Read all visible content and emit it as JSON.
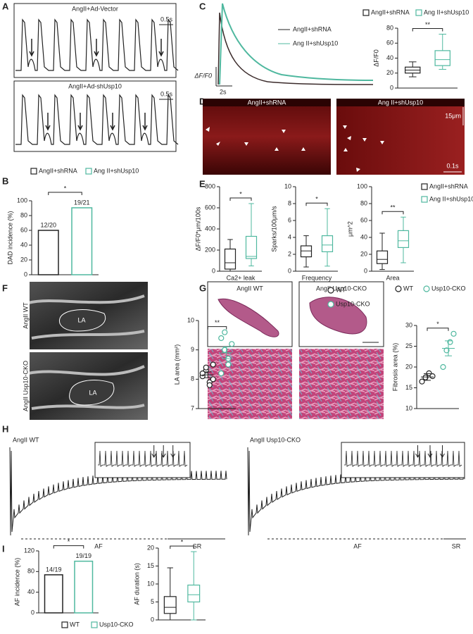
{
  "panel_labels": [
    "A",
    "B",
    "C",
    "D",
    "E",
    "F",
    "G",
    "H",
    "I"
  ],
  "panel_a": {
    "top_title": "AngII+Ad-Vector",
    "bottom_title": "AngII+Ad-shUsp10",
    "scale_top": "0.5s",
    "scale_bottom": "0.5s"
  },
  "panel_c": {
    "legend": [
      "AngII+shRNA",
      "Ang II+shUsp10"
    ],
    "y_label": "ΔF/F0",
    "scale": "2s"
  },
  "panel_d": {
    "left_title": "AngII+shRNA",
    "right_title": "Ang II+shUsp10",
    "scale_y": "15μm",
    "scale_x": "0.1s"
  },
  "panel_f": {
    "image_labels": [
      "AngII WT",
      "AngII Usp10-CKO"
    ],
    "region": "LA"
  },
  "panel_g": {
    "titles": [
      "AngII WT",
      "AngII Usp10-CKO"
    ]
  },
  "panel_h": {
    "titles": [
      "AngII WT",
      "AngII Usp10-CKO"
    ],
    "segments": [
      "AF",
      "SR"
    ]
  },
  "chart_data": [
    {
      "type": "bar",
      "y_label": "DAD incidence (%)",
      "categories": [
        "AngII+shRNA",
        "Ang II+shUsp10"
      ],
      "colors": [
        "#222222",
        "#4fb89f"
      ],
      "values": [
        60,
        90.5
      ],
      "value_labels": [
        "12/20",
        "19/21"
      ],
      "ylim": [
        0,
        100
      ],
      "yticks": [
        0,
        20,
        40,
        60,
        80,
        100
      ],
      "significance": "*"
    },
    {
      "type": "box",
      "y_label": "ΔF/F0",
      "ylim": [
        0,
        80
      ],
      "yticks": [
        0,
        20,
        40,
        60,
        80
      ],
      "significance": "**",
      "series": [
        {
          "name": "AngII+shRNA",
          "color": "#222222",
          "min": 15,
          "q1": 20,
          "median": 24,
          "q3": 28,
          "max": 35
        },
        {
          "name": "Ang II+shUsp10",
          "color": "#4fb89f",
          "min": 25,
          "q1": 30,
          "median": 38,
          "q3": 50,
          "max": 72
        }
      ]
    },
    {
      "type": "box",
      "y_label": "ΔF/F0*μm/100s",
      "x_label": "Ca2+ leak",
      "ylim": [
        0,
        800
      ],
      "yticks": [
        0,
        200,
        400,
        600,
        800
      ],
      "significance": "*",
      "series": [
        {
          "color": "#222222",
          "min": 0,
          "q1": 20,
          "median": 80,
          "q3": 210,
          "max": 300
        },
        {
          "color": "#4fb89f",
          "min": 50,
          "q1": 120,
          "median": 140,
          "q3": 330,
          "max": 640
        }
      ]
    },
    {
      "type": "box",
      "y_label": "Sparks/100μm/s",
      "x_label": "Frequency",
      "ylim": [
        0,
        10
      ],
      "yticks": [
        0,
        2,
        4,
        6,
        8,
        10
      ],
      "significance": "*",
      "series": [
        {
          "color": "#222222",
          "min": 0.5,
          "q1": 1.7,
          "median": 2.4,
          "q3": 3,
          "max": 4.2
        },
        {
          "color": "#4fb89f",
          "min": 0.6,
          "q1": 2.3,
          "median": 3.1,
          "q3": 4.2,
          "max": 7.4
        }
      ]
    },
    {
      "type": "box",
      "y_label": "μm^2",
      "x_label": "Area",
      "ylim": [
        0,
        100
      ],
      "yticks": [
        0,
        20,
        40,
        60,
        80,
        100
      ],
      "significance": "**",
      "series": [
        {
          "name": "AngII+shRNA",
          "color": "#222222",
          "min": 2,
          "q1": 9,
          "median": 14,
          "q3": 24,
          "max": 45
        },
        {
          "name": "Ang II+shUsp10",
          "color": "#4fb89f",
          "min": 10,
          "q1": 28,
          "median": 36,
          "q3": 48,
          "max": 64
        }
      ]
    },
    {
      "type": "dot",
      "y_label": "LA area (mm²)",
      "ylim": [
        7,
        10
      ],
      "yticks": [
        7,
        8,
        9,
        10
      ],
      "significance": "**",
      "series": [
        {
          "name": "WT",
          "color": "#222222",
          "values": [
            8.1,
            8.3,
            7.9,
            8.0,
            8.2,
            8.4,
            7.8,
            8.5
          ],
          "mean": 8.15,
          "sem": 0.1
        },
        {
          "name": "Usp10-CKO",
          "color": "#4fb89f",
          "values": [
            9.4,
            9.0,
            8.7,
            9.2,
            8.2,
            9.6,
            8.5
          ],
          "mean": 8.9,
          "sem": 0.2
        }
      ]
    },
    {
      "type": "dot",
      "y_label": "Fibrosis area (%)",
      "ylim": [
        10,
        30
      ],
      "yticks": [
        10,
        15,
        20,
        25,
        30
      ],
      "significance": "*",
      "series": [
        {
          "name": "WT",
          "color": "#222222",
          "values": [
            16.5,
            17.5,
            18.5,
            17.8
          ],
          "mean": 17.6,
          "sem": 0.8
        },
        {
          "name": "Usp10-CKO",
          "color": "#4fb89f",
          "values": [
            20,
            24,
            26,
            28
          ],
          "mean": 24.5,
          "sem": 1.8
        }
      ]
    },
    {
      "type": "bar",
      "y_label": "AF incidence (%)",
      "categories": [
        "WT",
        "Usp10-CKO"
      ],
      "colors": [
        "#222222",
        "#4fb89f"
      ],
      "values": [
        73.7,
        100
      ],
      "value_labels": [
        "14/19",
        "19/19"
      ],
      "ylim": [
        0,
        120
      ],
      "yticks": [
        0,
        40,
        80,
        120
      ],
      "significance": "*"
    },
    {
      "type": "box",
      "y_label": "AF duration (s)",
      "ylim": [
        0,
        20
      ],
      "yticks": [
        0,
        5,
        10,
        15,
        20
      ],
      "significance": "*",
      "series": [
        {
          "color": "#222222",
          "min": 0,
          "q1": 1.8,
          "median": 3.5,
          "q3": 6.5,
          "max": 14.5
        },
        {
          "color": "#4fb89f",
          "min": 0,
          "q1": 5,
          "median": 7,
          "q3": 9.7,
          "max": 19
        }
      ]
    }
  ]
}
